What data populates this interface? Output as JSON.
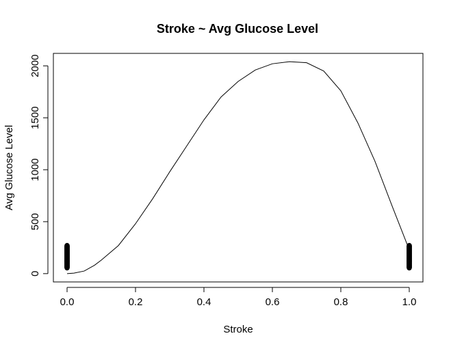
{
  "chart_data": {
    "type": "scatter",
    "title": "Stroke ~ Avg Glucose Level",
    "xlabel": "Stroke",
    "ylabel": "Avg Glucose Level",
    "xlim": [
      -0.04,
      1.04
    ],
    "ylim": [
      -80,
      2120
    ],
    "x_ticks": [
      0.0,
      0.2,
      0.4,
      0.6,
      0.8,
      1.0
    ],
    "x_tick_labels": [
      "0.0",
      "0.2",
      "0.4",
      "0.6",
      "0.8",
      "1.0"
    ],
    "y_ticks": [
      0,
      500,
      1000,
      1500,
      2000
    ],
    "y_tick_labels": [
      "0",
      "500",
      "1000",
      "1500",
      "2000"
    ],
    "grid": false,
    "legend": "none",
    "points": {
      "x0": {
        "x": 0.0,
        "y_min": 55,
        "y_max": 272
      },
      "x1": {
        "x": 1.0,
        "y_min": 55,
        "y_max": 272
      }
    },
    "fitted_curve": {
      "x": [
        0.0,
        0.02,
        0.05,
        0.08,
        0.1,
        0.15,
        0.2,
        0.25,
        0.3,
        0.35,
        0.4,
        0.45,
        0.5,
        0.55,
        0.6,
        0.65,
        0.7,
        0.75,
        0.8,
        0.85,
        0.9,
        0.95,
        1.0
      ],
      "y": [
        0,
        5,
        25,
        80,
        130,
        270,
        480,
        720,
        980,
        1230,
        1480,
        1700,
        1850,
        1960,
        2020,
        2040,
        2030,
        1950,
        1760,
        1450,
        1080,
        650,
        230
      ]
    }
  }
}
